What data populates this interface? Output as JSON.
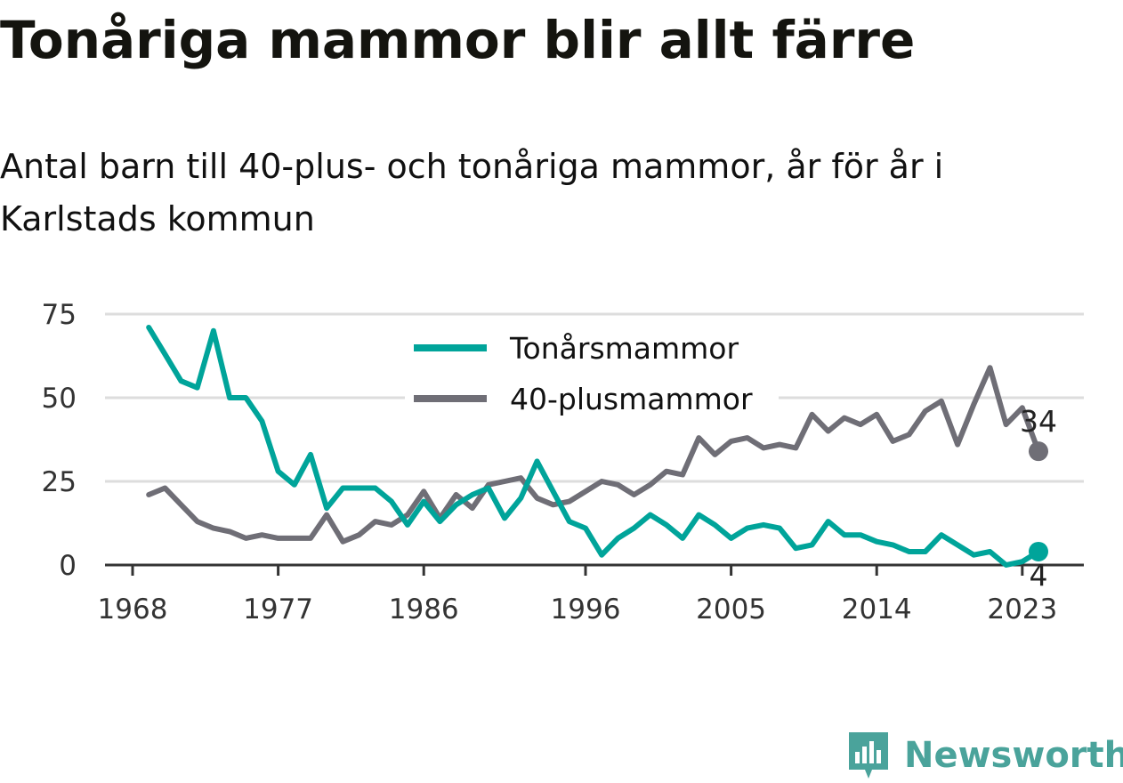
{
  "title": "Tonåriga mammor blir allt färre",
  "subtitle": "Antal barn till 40-plus- och tonåriga mammor, år för år i Karlstads kommun",
  "brand": {
    "name": "Newsworthy",
    "icon": "newsworthy-bar-chart-logo",
    "color": "#4aa39b"
  },
  "chart_data": {
    "type": "line",
    "x": [
      1969,
      1970,
      1971,
      1972,
      1973,
      1974,
      1975,
      1976,
      1977,
      1978,
      1979,
      1980,
      1981,
      1982,
      1983,
      1984,
      1985,
      1986,
      1987,
      1988,
      1989,
      1990,
      1991,
      1992,
      1993,
      1994,
      1995,
      1996,
      1997,
      1998,
      1999,
      2000,
      2001,
      2002,
      2003,
      2004,
      2005,
      2006,
      2007,
      2008,
      2009,
      2010,
      2011,
      2012,
      2013,
      2014,
      2015,
      2016,
      2017,
      2018,
      2019,
      2020,
      2021,
      2022,
      2023,
      2024
    ],
    "xticks": [
      1968,
      1977,
      1986,
      1996,
      2005,
      2014,
      2023
    ],
    "yticks": [
      0,
      25,
      50,
      75
    ],
    "ylim": [
      0,
      75
    ],
    "xlim": [
      1968,
      2025
    ],
    "grid": true,
    "legend": "top-center",
    "series": [
      {
        "name": "Tonårsmammor",
        "color": "#00a49a",
        "values": [
          71,
          63,
          55,
          53,
          70,
          50,
          50,
          43,
          28,
          24,
          33,
          17,
          23,
          23,
          23,
          19,
          12,
          19,
          13,
          18,
          21,
          23,
          14,
          20,
          31,
          22,
          13,
          11,
          3,
          8,
          11,
          15,
          12,
          8,
          15,
          12,
          8,
          11,
          12,
          11,
          5,
          6,
          13,
          9,
          9,
          7,
          6,
          4,
          4,
          9,
          6,
          3,
          4,
          0,
          1,
          4
        ],
        "end_label": "4"
      },
      {
        "name": "40-plusmammor",
        "color": "#6f6e76",
        "values": [
          21,
          23,
          18,
          13,
          11,
          10,
          8,
          9,
          8,
          8,
          8,
          15,
          7,
          9,
          13,
          12,
          15,
          22,
          14,
          21,
          17,
          24,
          25,
          26,
          20,
          18,
          19,
          22,
          25,
          24,
          21,
          24,
          28,
          27,
          38,
          33,
          37,
          38,
          35,
          36,
          35,
          45,
          40,
          44,
          42,
          45,
          37,
          39,
          46,
          49,
          36,
          48,
          59,
          42,
          47,
          34
        ],
        "end_label": "34"
      }
    ]
  }
}
